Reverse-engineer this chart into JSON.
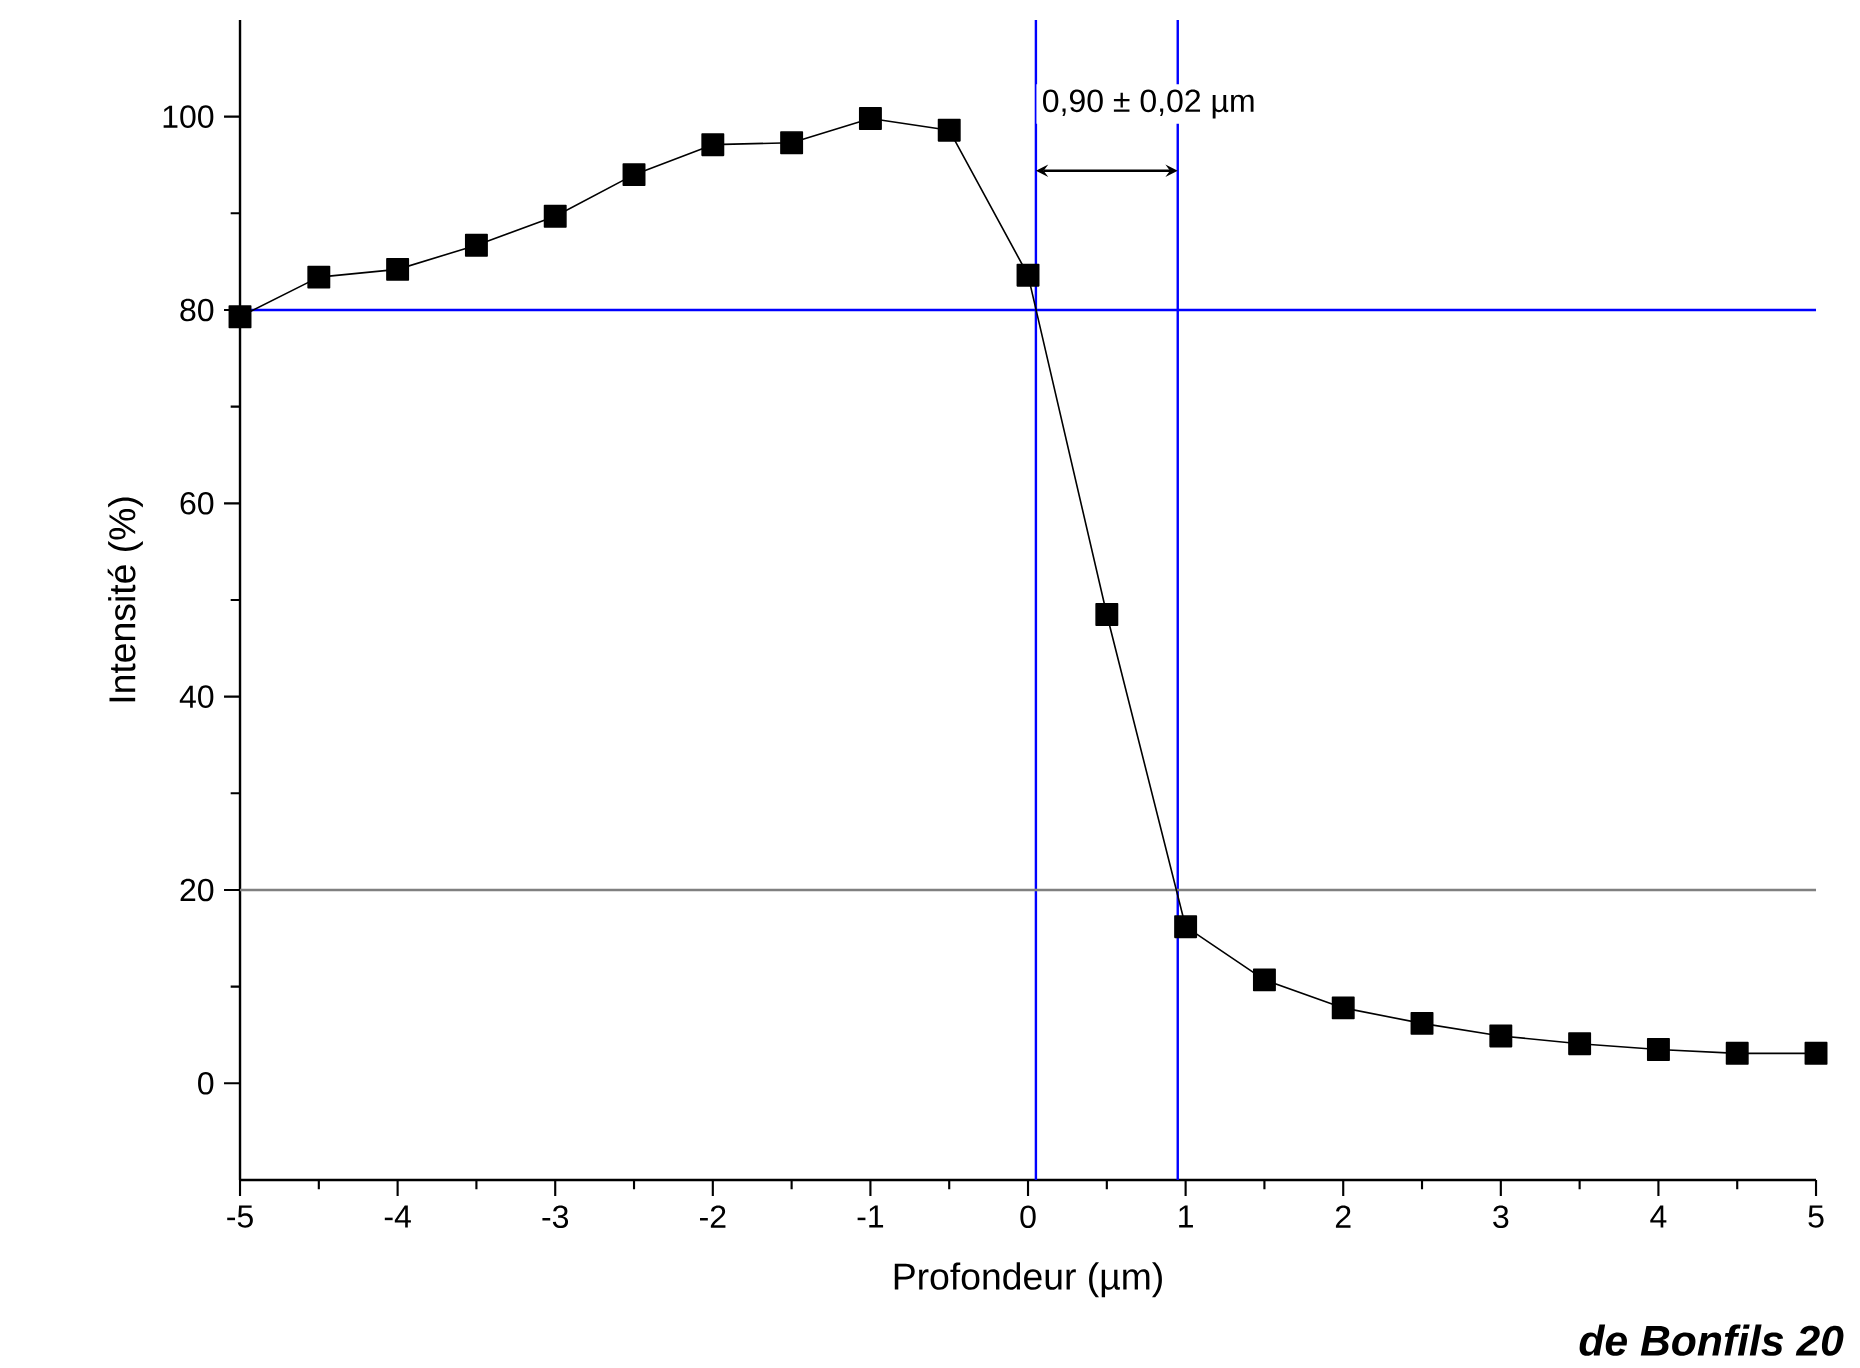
{
  "chart_data": {
    "type": "line",
    "xlabel": "Profondeur (µm)",
    "ylabel": "Intensité (%)",
    "x": [
      -5,
      -4.5,
      -4,
      -3.5,
      -3,
      -2.5,
      -2,
      -1.5,
      -1,
      -0.5,
      0,
      0.5,
      1,
      1.5,
      2,
      2.5,
      3,
      3.5,
      4,
      4.5,
      5
    ],
    "series": [
      {
        "color": "#000000",
        "values": [
          79.3,
          83.4,
          84.2,
          86.7,
          89.7,
          94.0,
          97.1,
          97.3,
          99.8,
          98.6,
          83.6,
          48.5,
          16.2,
          10.7,
          7.8,
          6.2,
          4.9,
          4.1,
          3.5,
          3.1,
          3.1
        ]
      }
    ],
    "marker": "square",
    "xlim": [
      -5,
      5
    ],
    "xticks": [
      -5,
      -4,
      -3,
      -2,
      -1,
      0,
      1,
      2,
      3,
      4,
      5
    ],
    "ylim": [
      -10,
      110
    ],
    "yticks": [
      0,
      20,
      40,
      60,
      80,
      100
    ],
    "ref_lines": [
      {
        "axis": "y",
        "value": 80,
        "color": "#0000ff"
      },
      {
        "axis": "x",
        "value": 0.05,
        "color": "#0000ff"
      },
      {
        "axis": "x",
        "value": 0.95,
        "color": "#0000ff"
      },
      {
        "axis": "y",
        "value": 20,
        "color": "#808080"
      }
    ],
    "annotations": [
      "0,90 ± 0,02 µm",
      "de Bonfils 20"
    ]
  }
}
